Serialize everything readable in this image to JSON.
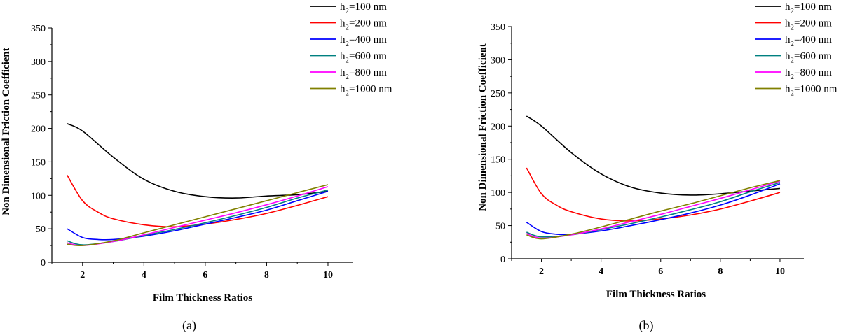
{
  "chart_data": [
    {
      "type": "line",
      "caption": "(a)",
      "xlabel": "Film Thickness Ratios",
      "ylabel": "Non Dimensional Friction Coefficient",
      "xlim": [
        1,
        10.8
      ],
      "ylim": [
        0,
        350
      ],
      "xticks": [
        2,
        4,
        6,
        8,
        10
      ],
      "yticks": [
        0,
        50,
        100,
        150,
        200,
        250,
        300,
        350
      ],
      "series": [
        {
          "name": "h2=100 nm",
          "sym": "h",
          "sub": "2",
          "rest": "=100 nm",
          "color": "#000000",
          "x": [
            1.5,
            2,
            3,
            4,
            5,
            6,
            7,
            8,
            9,
            10
          ],
          "y": [
            207,
            196,
            157,
            124,
            106,
            98,
            96,
            99,
            101,
            106
          ]
        },
        {
          "name": "h2=200 nm",
          "sym": "h",
          "sub": "2",
          "rest": "=200 nm",
          "color": "#ff0000",
          "x": [
            1.5,
            2,
            2.5,
            3,
            4,
            5,
            6,
            7,
            8,
            9,
            10
          ],
          "y": [
            130,
            92,
            75,
            65,
            56,
            53,
            57,
            64,
            73,
            85,
            98
          ]
        },
        {
          "name": "h2=400 nm",
          "sym": "h",
          "sub": "2",
          "rest": "=400 nm",
          "color": "#0000ff",
          "x": [
            1.5,
            2,
            2.5,
            3,
            4,
            5,
            6,
            7,
            8,
            9,
            10
          ],
          "y": [
            50,
            37,
            34,
            34,
            39,
            47,
            57,
            67,
            78,
            92,
            106
          ]
        },
        {
          "name": "h2=600 nm",
          "sym": "h",
          "sub": "2",
          "rest": "=600 nm",
          "color": "#008080",
          "x": [
            1.5,
            2,
            3,
            4,
            5,
            6,
            7,
            8,
            9,
            10
          ],
          "y": [
            32,
            26,
            31,
            40,
            49,
            59,
            70,
            82,
            96,
            108
          ]
        },
        {
          "name": "h2=800 nm",
          "sym": "h",
          "sub": "2",
          "rest": "=800 nm",
          "color": "#ff00ff",
          "x": [
            1.5,
            2,
            3,
            4,
            5,
            6,
            7,
            8,
            9,
            10
          ],
          "y": [
            29,
            25,
            31,
            41,
            52,
            63,
            74,
            86,
            99,
            113
          ]
        },
        {
          "name": "h2=1000 nm",
          "sym": "h",
          "sub": "2",
          "rest": "=1000 nm",
          "color": "#808000",
          "x": [
            1.5,
            2,
            3,
            4,
            5,
            6,
            7,
            8,
            9,
            10
          ],
          "y": [
            27,
            25,
            32,
            44,
            56,
            68,
            80,
            92,
            104,
            116
          ]
        }
      ]
    },
    {
      "type": "line",
      "caption": "(b)",
      "xlabel": "Film Thickness Ratios",
      "ylabel": "Non Dimensional Friction Coefficient",
      "xlim": [
        1,
        10.8
      ],
      "ylim": [
        0,
        350
      ],
      "xticks": [
        2,
        4,
        6,
        8,
        10
      ],
      "yticks": [
        0,
        50,
        100,
        150,
        200,
        250,
        300,
        350
      ],
      "series": [
        {
          "name": "h2=100 nm",
          "sym": "h",
          "sub": "2",
          "rest": "=100 nm",
          "color": "#000000",
          "x": [
            1.5,
            2,
            3,
            4,
            5,
            6,
            7,
            8,
            9,
            10
          ],
          "y": [
            215,
            200,
            160,
            128,
            108,
            99,
            96,
            98,
            102,
            106
          ]
        },
        {
          "name": "h2=200 nm",
          "sym": "h",
          "sub": "2",
          "rest": "=200 nm",
          "color": "#ff0000",
          "x": [
            1.5,
            2,
            2.5,
            3,
            4,
            5,
            6,
            7,
            8,
            9,
            10
          ],
          "y": [
            137,
            98,
            81,
            71,
            60,
            57,
            60,
            66,
            75,
            87,
            100
          ]
        },
        {
          "name": "h2=400 nm",
          "sym": "h",
          "sub": "2",
          "rest": "=400 nm",
          "color": "#0000ff",
          "x": [
            1.5,
            2,
            2.5,
            3,
            4,
            5,
            6,
            7,
            8,
            9,
            10
          ],
          "y": [
            55,
            41,
            37,
            37,
            42,
            50,
            59,
            69,
            81,
            96,
            113
          ]
        },
        {
          "name": "h2=600 nm",
          "sym": "h",
          "sub": "2",
          "rest": "=600 nm",
          "color": "#008080",
          "x": [
            1.5,
            2,
            3,
            4,
            5,
            6,
            7,
            8,
            9,
            10
          ],
          "y": [
            40,
            33,
            36,
            44,
            53,
            63,
            74,
            86,
            101,
            115
          ]
        },
        {
          "name": "h2=800 nm",
          "sym": "h",
          "sub": "2",
          "rest": "=800 nm",
          "color": "#ff00ff",
          "x": [
            1.5,
            2,
            3,
            4,
            5,
            6,
            7,
            8,
            9,
            10
          ],
          "y": [
            38,
            31,
            36,
            45,
            56,
            67,
            79,
            91,
            104,
            117
          ]
        },
        {
          "name": "h2=1000 nm",
          "sym": "h",
          "sub": "2",
          "rest": "=1000 nm",
          "color": "#808000",
          "x": [
            1.5,
            2,
            3,
            4,
            5,
            6,
            7,
            8,
            9,
            10
          ],
          "y": [
            36,
            30,
            37,
            48,
            60,
            72,
            83,
            95,
            107,
            118
          ]
        }
      ]
    }
  ]
}
